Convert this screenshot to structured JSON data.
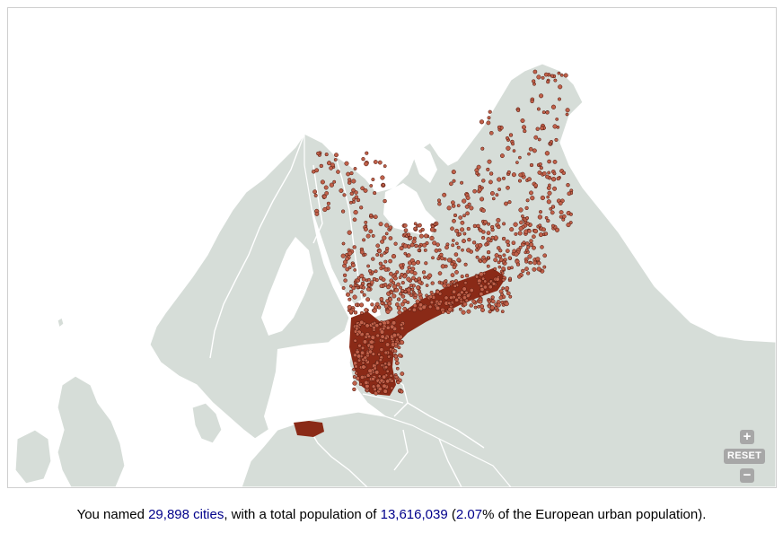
{
  "map": {
    "controls": {
      "zoom_in": "+",
      "reset": "RESET",
      "zoom_out": "−"
    },
    "colors": {
      "land": "#d6ddd8",
      "borders": "#ffffff",
      "water": "#ffffff",
      "city_fill": "#c0614a",
      "city_outline": "#4a1208",
      "dense_cluster": "#8a2a17"
    }
  },
  "summary": {
    "prefix": "You named ",
    "cities_count": "29,898 cities",
    "middle": ", with a total population of ",
    "population": "13,616,039",
    "open_paren": " (",
    "percentage": "2.07",
    "suffix": "% of the European urban population)."
  }
}
